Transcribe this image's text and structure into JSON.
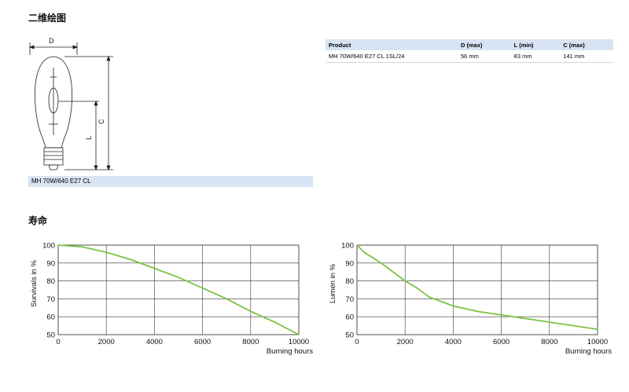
{
  "headings": {
    "dimension_drawing": "二维绘图",
    "life": "寿命"
  },
  "drawing": {
    "label_d": "D",
    "label_c": "C",
    "label_l": "L",
    "caption": "MH 70W/640 E27 CL"
  },
  "product_table": {
    "headers": [
      "Product",
      "D (max)",
      "L (min)",
      "C (max)"
    ],
    "rows": [
      [
        "MH 70W/640 E27 CL 1SL/24",
        "56 mm",
        "83 mm",
        "141 mm"
      ]
    ]
  },
  "colors": {
    "curve": "#7dc242",
    "caption_bg": "#d8e4f3"
  },
  "chart_data": [
    {
      "type": "line",
      "ylabel": "Survivals in %",
      "xlabel": "Burning hours",
      "xlim": [
        0,
        10000
      ],
      "ylim": [
        50,
        100
      ],
      "xticks": [
        0,
        2000,
        4000,
        6000,
        8000,
        10000
      ],
      "yticks": [
        50,
        60,
        70,
        80,
        90,
        100
      ],
      "grid": true,
      "series": [
        {
          "x": [
            0,
            1000,
            2000,
            3000,
            4000,
            5000,
            6000,
            7000,
            8000,
            9000,
            10000
          ],
          "y": [
            100,
            99,
            96,
            92,
            87,
            82,
            76,
            70,
            63,
            57,
            50
          ]
        }
      ]
    },
    {
      "type": "line",
      "ylabel": "Lumen in %",
      "xlabel": "Burning hours",
      "xlim": [
        0,
        10000
      ],
      "ylim": [
        50,
        100
      ],
      "xticks": [
        0,
        2000,
        4000,
        6000,
        8000,
        10000
      ],
      "yticks": [
        50,
        60,
        70,
        80,
        90,
        100
      ],
      "grid": true,
      "series": [
        {
          "x": [
            0,
            300,
            1000,
            2000,
            2500,
            3000,
            4000,
            5000,
            6000,
            7000,
            8000,
            9000,
            10000
          ],
          "y": [
            100,
            96,
            90,
            80,
            76,
            71,
            66,
            63,
            61,
            59,
            57,
            55,
            53
          ]
        }
      ]
    }
  ]
}
